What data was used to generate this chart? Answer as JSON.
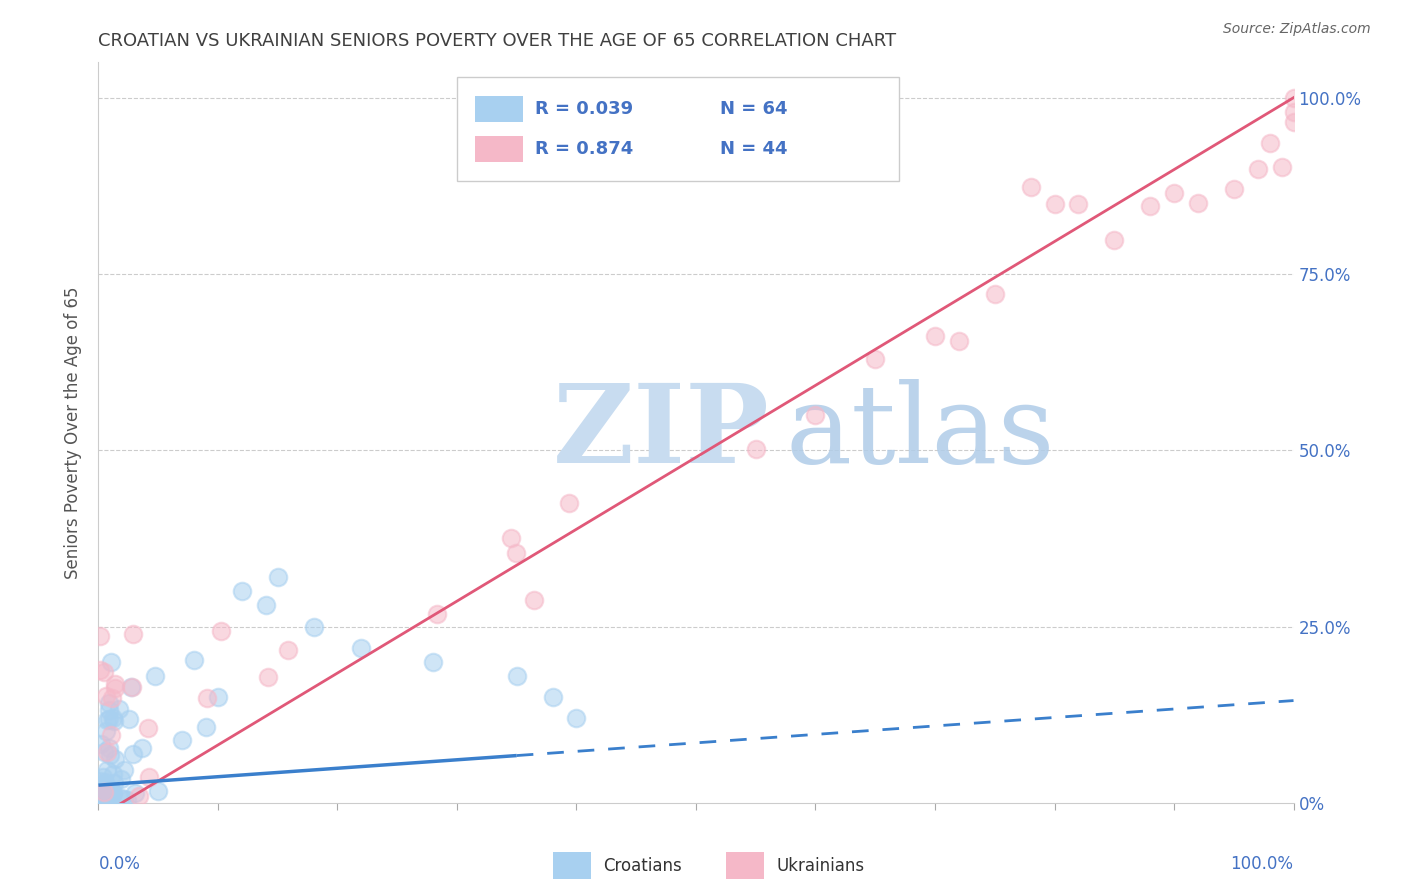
{
  "title": "CROATIAN VS UKRAINIAN SENIORS POVERTY OVER THE AGE OF 65 CORRELATION CHART",
  "source": "Source: ZipAtlas.com",
  "ylabel": "Seniors Poverty Over the Age of 65",
  "r_croatian": "R = 0.039",
  "n_croatian": "N = 64",
  "r_ukrainian": "R = 0.874",
  "n_ukrainian": "N = 44",
  "legend_croatian": "Croatians",
  "legend_ukrainian": "Ukrainians",
  "color_croatian": "#A8D0F0",
  "color_ukrainian": "#F5B8C8",
  "color_line_croatian": "#3A7FCC",
  "color_line_ukrainian": "#E05878",
  "color_r_text": "#4472C4",
  "color_axis_labels": "#4472C4",
  "color_title": "#404040",
  "watermark_zip_color": "#C8DCF0",
  "watermark_atlas_color": "#B0CCE8",
  "xlim": [
    0.0,
    1.0
  ],
  "ylim": [
    0.0,
    1.05
  ],
  "yticks": [
    0.0,
    0.25,
    0.5,
    0.75,
    1.0
  ],
  "ytick_labels": [
    "0%",
    "25.0%",
    "50.0%",
    "75.0%",
    "100.0%"
  ],
  "cro_line_x_solid_end": 0.35,
  "cro_line_y_start": 0.025,
  "cro_line_y_at_solid_end": 0.04,
  "cro_line_y_at_100": 0.145,
  "ukr_line_x_start": 0.0,
  "ukr_line_y_start": -0.02,
  "ukr_line_x_end": 1.0,
  "ukr_line_y_end": 1.0
}
